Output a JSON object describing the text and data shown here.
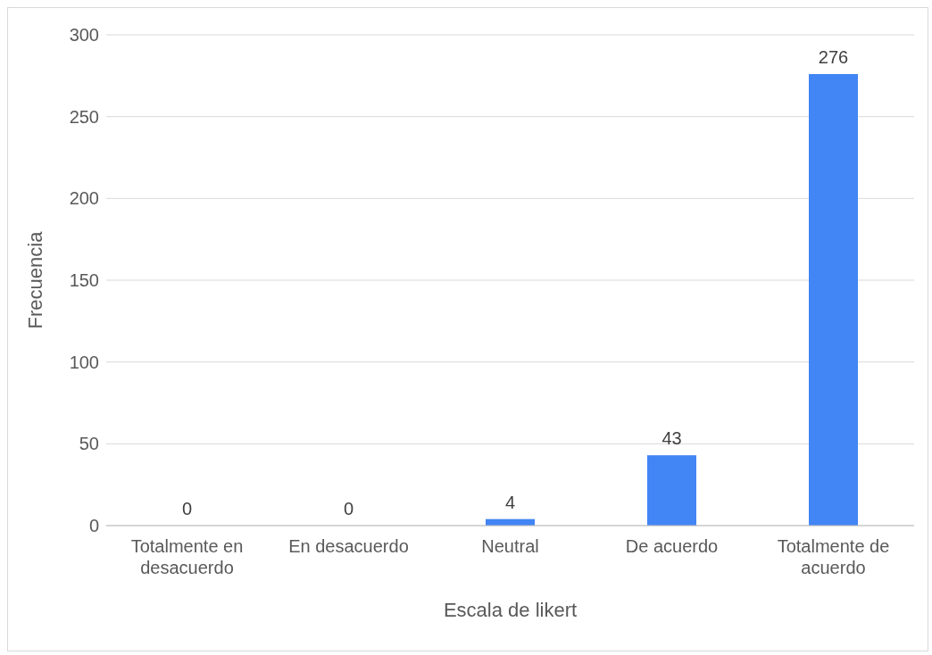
{
  "chart_data": {
    "type": "bar",
    "xlabel": "Escala de likert",
    "ylabel": "Frecuencia",
    "categories": [
      "Totalmente en desacuerdo",
      "En desacuerdo",
      "Neutral",
      "De acuerdo",
      "Totalmente de acuerdo"
    ],
    "values": [
      0,
      0,
      4,
      43,
      276
    ],
    "color": "#4285f4",
    "ylim": [
      0,
      300
    ],
    "yticks": [
      0,
      50,
      100,
      150,
      200,
      250,
      300
    ],
    "grid": "y",
    "data_labels": true,
    "legend": false
  }
}
